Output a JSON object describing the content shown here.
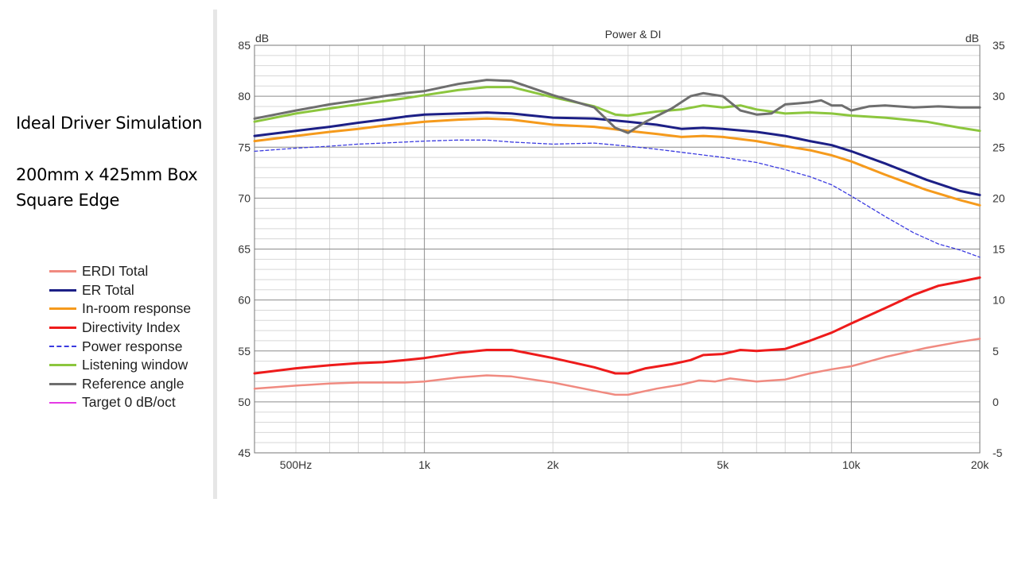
{
  "annotation": {
    "line1": "Ideal Driver Simulation",
    "line2": "200mm x 425mm Box",
    "line3": "Square Edge"
  },
  "chart_data": {
    "type": "line",
    "title": "Power & DI",
    "x_scale": "log",
    "xlim": [
      400,
      20000
    ],
    "x_ticks": [
      {
        "value": 500,
        "label": "500Hz"
      },
      {
        "value": 1000,
        "label": "1k"
      },
      {
        "value": 2000,
        "label": "2k"
      },
      {
        "value": 5000,
        "label": "5k"
      },
      {
        "value": 10000,
        "label": "10k"
      },
      {
        "value": 20000,
        "label": "20k"
      }
    ],
    "ylabel_left": "dB",
    "ylabel_right": "dB",
    "ylim_left": [
      45,
      85
    ],
    "ylim_right": [
      -5,
      35
    ],
    "y_ticks_left": [
      45,
      50,
      55,
      60,
      65,
      70,
      75,
      80,
      85
    ],
    "y_ticks_right": [
      -5,
      0,
      5,
      10,
      15,
      20,
      25,
      30,
      35
    ],
    "grid": true,
    "legend_position": "left of plot",
    "series": [
      {
        "name": "ERDI Total",
        "color": "#f08a80",
        "width": 2.5,
        "dash": "",
        "axis": "right",
        "points": [
          [
            400,
            1.3
          ],
          [
            500,
            1.6
          ],
          [
            600,
            1.8
          ],
          [
            700,
            1.9
          ],
          [
            800,
            1.9
          ],
          [
            900,
            1.9
          ],
          [
            1000,
            2.0
          ],
          [
            1200,
            2.4
          ],
          [
            1400,
            2.6
          ],
          [
            1600,
            2.5
          ],
          [
            2000,
            1.9
          ],
          [
            2500,
            1.1
          ],
          [
            2800,
            0.7
          ],
          [
            3000,
            0.7
          ],
          [
            3500,
            1.3
          ],
          [
            4000,
            1.7
          ],
          [
            4400,
            2.1
          ],
          [
            4800,
            2.0
          ],
          [
            5200,
            2.3
          ],
          [
            6000,
            2.0
          ],
          [
            6500,
            2.1
          ],
          [
            7000,
            2.2
          ],
          [
            8000,
            2.8
          ],
          [
            9000,
            3.2
          ],
          [
            10000,
            3.5
          ],
          [
            12000,
            4.4
          ],
          [
            15000,
            5.3
          ],
          [
            18000,
            5.9
          ],
          [
            20000,
            6.2
          ]
        ]
      },
      {
        "name": "ER Total",
        "color": "#1c1f86",
        "width": 3,
        "dash": "",
        "axis": "left",
        "points": [
          [
            400,
            76.1
          ],
          [
            500,
            76.6
          ],
          [
            600,
            77.0
          ],
          [
            700,
            77.4
          ],
          [
            800,
            77.7
          ],
          [
            900,
            78.0
          ],
          [
            1000,
            78.2
          ],
          [
            1200,
            78.3
          ],
          [
            1400,
            78.4
          ],
          [
            1600,
            78.3
          ],
          [
            2000,
            77.9
          ],
          [
            2500,
            77.8
          ],
          [
            3000,
            77.5
          ],
          [
            3500,
            77.2
          ],
          [
            4000,
            76.8
          ],
          [
            4500,
            76.9
          ],
          [
            5000,
            76.8
          ],
          [
            6000,
            76.5
          ],
          [
            7000,
            76.1
          ],
          [
            8000,
            75.6
          ],
          [
            9000,
            75.2
          ],
          [
            10000,
            74.6
          ],
          [
            12000,
            73.4
          ],
          [
            15000,
            71.8
          ],
          [
            18000,
            70.7
          ],
          [
            20000,
            70.3
          ]
        ]
      },
      {
        "name": "In-room response",
        "color": "#f59a1c",
        "width": 3,
        "dash": "",
        "axis": "left",
        "points": [
          [
            400,
            75.6
          ],
          [
            500,
            76.1
          ],
          [
            600,
            76.5
          ],
          [
            700,
            76.8
          ],
          [
            800,
            77.1
          ],
          [
            900,
            77.3
          ],
          [
            1000,
            77.5
          ],
          [
            1200,
            77.7
          ],
          [
            1400,
            77.8
          ],
          [
            1600,
            77.7
          ],
          [
            2000,
            77.2
          ],
          [
            2500,
            77.0
          ],
          [
            3000,
            76.6
          ],
          [
            3500,
            76.3
          ],
          [
            4000,
            76.0
          ],
          [
            4500,
            76.1
          ],
          [
            5000,
            76.0
          ],
          [
            6000,
            75.6
          ],
          [
            7000,
            75.1
          ],
          [
            8000,
            74.7
          ],
          [
            9000,
            74.2
          ],
          [
            10000,
            73.6
          ],
          [
            12000,
            72.3
          ],
          [
            15000,
            70.8
          ],
          [
            18000,
            69.8
          ],
          [
            20000,
            69.3
          ]
        ]
      },
      {
        "name": "Directivity Index",
        "color": "#ee1b1b",
        "width": 3,
        "dash": "",
        "axis": "right",
        "points": [
          [
            400,
            2.8
          ],
          [
            500,
            3.3
          ],
          [
            600,
            3.6
          ],
          [
            700,
            3.8
          ],
          [
            800,
            3.9
          ],
          [
            900,
            4.1
          ],
          [
            1000,
            4.3
          ],
          [
            1200,
            4.8
          ],
          [
            1400,
            5.1
          ],
          [
            1600,
            5.1
          ],
          [
            2000,
            4.3
          ],
          [
            2500,
            3.4
          ],
          [
            2800,
            2.8
          ],
          [
            3000,
            2.8
          ],
          [
            3300,
            3.3
          ],
          [
            3800,
            3.7
          ],
          [
            4200,
            4.1
          ],
          [
            4500,
            4.6
          ],
          [
            5000,
            4.7
          ],
          [
            5500,
            5.1
          ],
          [
            6000,
            5.0
          ],
          [
            6500,
            5.1
          ],
          [
            7000,
            5.2
          ],
          [
            8000,
            6.0
          ],
          [
            9000,
            6.8
          ],
          [
            10000,
            7.7
          ],
          [
            12000,
            9.2
          ],
          [
            14000,
            10.5
          ],
          [
            16000,
            11.4
          ],
          [
            18000,
            11.8
          ],
          [
            20000,
            12.2
          ]
        ]
      },
      {
        "name": "Power response",
        "color": "#3b3be0",
        "width": 1.3,
        "dash": "4,3",
        "axis": "left",
        "points": [
          [
            400,
            74.6
          ],
          [
            500,
            74.9
          ],
          [
            600,
            75.1
          ],
          [
            700,
            75.3
          ],
          [
            800,
            75.4
          ],
          [
            900,
            75.5
          ],
          [
            1000,
            75.6
          ],
          [
            1200,
            75.7
          ],
          [
            1400,
            75.7
          ],
          [
            1600,
            75.5
          ],
          [
            2000,
            75.3
          ],
          [
            2500,
            75.4
          ],
          [
            3000,
            75.1
          ],
          [
            3500,
            74.8
          ],
          [
            4000,
            74.5
          ],
          [
            5000,
            74.0
          ],
          [
            6000,
            73.5
          ],
          [
            7000,
            72.8
          ],
          [
            8000,
            72.1
          ],
          [
            9000,
            71.3
          ],
          [
            10000,
            70.2
          ],
          [
            12000,
            68.2
          ],
          [
            14000,
            66.6
          ],
          [
            16000,
            65.5
          ],
          [
            18000,
            64.9
          ],
          [
            20000,
            64.2
          ]
        ]
      },
      {
        "name": "Listening window",
        "color": "#8cc63e",
        "width": 3,
        "dash": "",
        "axis": "left",
        "points": [
          [
            400,
            77.5
          ],
          [
            500,
            78.3
          ],
          [
            600,
            78.8
          ],
          [
            700,
            79.2
          ],
          [
            800,
            79.5
          ],
          [
            900,
            79.8
          ],
          [
            1000,
            80.1
          ],
          [
            1200,
            80.6
          ],
          [
            1400,
            80.9
          ],
          [
            1600,
            80.9
          ],
          [
            2000,
            79.9
          ],
          [
            2500,
            79.0
          ],
          [
            2800,
            78.2
          ],
          [
            3000,
            78.1
          ],
          [
            3500,
            78.5
          ],
          [
            4000,
            78.7
          ],
          [
            4500,
            79.1
          ],
          [
            5000,
            78.9
          ],
          [
            5500,
            79.1
          ],
          [
            6000,
            78.7
          ],
          [
            7000,
            78.3
          ],
          [
            8000,
            78.4
          ],
          [
            9000,
            78.3
          ],
          [
            10000,
            78.1
          ],
          [
            12000,
            77.9
          ],
          [
            15000,
            77.5
          ],
          [
            18000,
            76.9
          ],
          [
            20000,
            76.6
          ]
        ]
      },
      {
        "name": "Reference angle",
        "color": "#6e6e6e",
        "width": 3,
        "dash": "",
        "axis": "left",
        "points": [
          [
            400,
            77.8
          ],
          [
            500,
            78.6
          ],
          [
            600,
            79.2
          ],
          [
            700,
            79.6
          ],
          [
            800,
            80.0
          ],
          [
            900,
            80.3
          ],
          [
            1000,
            80.5
          ],
          [
            1200,
            81.2
          ],
          [
            1400,
            81.6
          ],
          [
            1600,
            81.5
          ],
          [
            2000,
            80.1
          ],
          [
            2500,
            78.9
          ],
          [
            2800,
            76.9
          ],
          [
            3000,
            76.4
          ],
          [
            3300,
            77.5
          ],
          [
            3800,
            78.8
          ],
          [
            4200,
            80.0
          ],
          [
            4500,
            80.3
          ],
          [
            5000,
            80.0
          ],
          [
            5500,
            78.6
          ],
          [
            6000,
            78.2
          ],
          [
            6500,
            78.3
          ],
          [
            7000,
            79.2
          ],
          [
            7500,
            79.3
          ],
          [
            8000,
            79.4
          ],
          [
            8500,
            79.6
          ],
          [
            9000,
            79.1
          ],
          [
            9500,
            79.1
          ],
          [
            10000,
            78.6
          ],
          [
            11000,
            79.0
          ],
          [
            12000,
            79.1
          ],
          [
            14000,
            78.9
          ],
          [
            16000,
            79.0
          ],
          [
            18000,
            78.9
          ],
          [
            20000,
            78.9
          ]
        ]
      },
      {
        "name": "Target 0 dB/oct",
        "color": "#e53ae5",
        "width": 2,
        "dash": "",
        "axis": "left",
        "points": []
      }
    ]
  }
}
